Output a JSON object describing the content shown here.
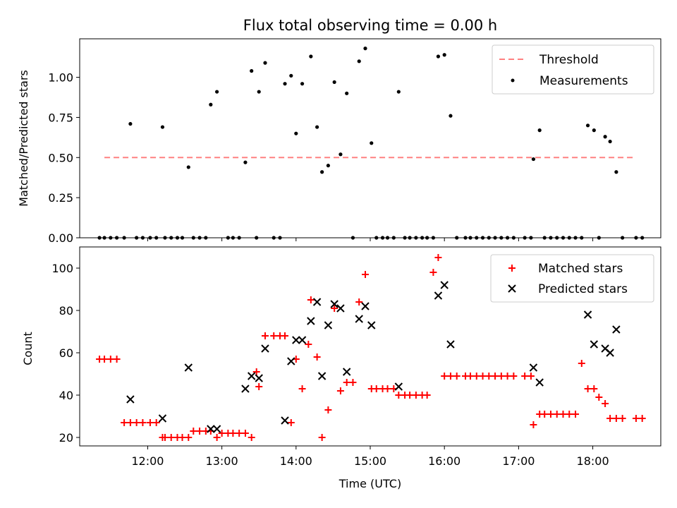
{
  "figure": {
    "title": "Flux total observing time = 0.00 h"
  },
  "chart_data": [
    {
      "type": "scatter",
      "ylabel": "Matched/Predicted stars",
      "ylim": [
        0,
        1.24
      ],
      "yticks": [
        "0.00",
        "0.25",
        "0.50",
        "0.75",
        "1.00"
      ],
      "grid": false,
      "legend_position": "top-right",
      "legend": {
        "threshold_label": "Threshold",
        "measurements_label": "Measurements"
      },
      "threshold": {
        "value": 0.5,
        "x_start": "11:25",
        "x_end": "18:35",
        "color": "#ff8080",
        "style": "dashed"
      },
      "series": [
        {
          "name": "Measurements",
          "color": "#000000",
          "marker": "dot",
          "points": [
            [
              "11:21",
              0
            ],
            [
              "11:25",
              0
            ],
            [
              "11:30",
              0
            ],
            [
              "11:35",
              0
            ],
            [
              "11:41",
              0
            ],
            [
              "11:46",
              0.71
            ],
            [
              "11:51",
              0
            ],
            [
              "11:56",
              0
            ],
            [
              "12:02",
              0
            ],
            [
              "12:07",
              0
            ],
            [
              "12:12",
              0.69
            ],
            [
              "12:14",
              0
            ],
            [
              "12:19",
              0
            ],
            [
              "12:24",
              0
            ],
            [
              "12:28",
              0
            ],
            [
              "12:33",
              0.44
            ],
            [
              "12:37",
              0
            ],
            [
              "12:42",
              0
            ],
            [
              "12:47",
              0
            ],
            [
              "12:51",
              0.83
            ],
            [
              "12:56",
              0.91
            ],
            [
              "13:05",
              0
            ],
            [
              "13:09",
              0
            ],
            [
              "13:14",
              0
            ],
            [
              "13:19",
              0.47
            ],
            [
              "13:24",
              1.04
            ],
            [
              "13:28",
              0
            ],
            [
              "13:30",
              0.91
            ],
            [
              "13:35",
              1.09
            ],
            [
              "13:42",
              0
            ],
            [
              "13:47",
              0
            ],
            [
              "13:51",
              0.96
            ],
            [
              "13:56",
              1.01
            ],
            [
              "14:00",
              0.65
            ],
            [
              "14:05",
              0.96
            ],
            [
              "14:12",
              1.13
            ],
            [
              "14:17",
              0.69
            ],
            [
              "14:21",
              0.41
            ],
            [
              "14:26",
              0.45
            ],
            [
              "14:31",
              0.97
            ],
            [
              "14:36",
              0.52
            ],
            [
              "14:41",
              0.9
            ],
            [
              "14:46",
              0
            ],
            [
              "14:51",
              1.1
            ],
            [
              "14:56",
              1.18
            ],
            [
              "15:01",
              0.59
            ],
            [
              "15:05",
              0
            ],
            [
              "15:10",
              0
            ],
            [
              "15:14",
              0
            ],
            [
              "15:19",
              0
            ],
            [
              "15:23",
              0.91
            ],
            [
              "15:28",
              0
            ],
            [
              "15:32",
              0
            ],
            [
              "15:37",
              0
            ],
            [
              "15:42",
              0
            ],
            [
              "15:46",
              0
            ],
            [
              "15:51",
              0
            ],
            [
              "15:55",
              1.13
            ],
            [
              "16:00",
              1.14
            ],
            [
              "16:05",
              0.76
            ],
            [
              "16:10",
              0
            ],
            [
              "16:17",
              0
            ],
            [
              "16:21",
              0
            ],
            [
              "16:26",
              0
            ],
            [
              "16:31",
              0
            ],
            [
              "16:36",
              0
            ],
            [
              "16:41",
              0
            ],
            [
              "16:46",
              0
            ],
            [
              "16:51",
              0
            ],
            [
              "16:56",
              0
            ],
            [
              "17:05",
              0
            ],
            [
              "17:10",
              0
            ],
            [
              "17:12",
              0.49
            ],
            [
              "17:17",
              0.67
            ],
            [
              "17:21",
              0
            ],
            [
              "17:26",
              0
            ],
            [
              "17:31",
              0
            ],
            [
              "17:36",
              0
            ],
            [
              "17:41",
              0
            ],
            [
              "17:46",
              0
            ],
            [
              "17:51",
              0
            ],
            [
              "17:56",
              0.7
            ],
            [
              "18:01",
              0.67
            ],
            [
              "18:05",
              0
            ],
            [
              "18:10",
              0.63
            ],
            [
              "18:14",
              0.6
            ],
            [
              "18:19",
              0.41
            ],
            [
              "18:24",
              0
            ],
            [
              "18:35",
              0
            ],
            [
              "18:40",
              0
            ]
          ]
        }
      ]
    },
    {
      "type": "scatter",
      "xlabel": "Time (UTC)",
      "ylabel": "Count",
      "ylim": [
        16,
        110
      ],
      "yticks": [
        "20",
        "40",
        "60",
        "80",
        "100"
      ],
      "xticks": [
        "12:00",
        "13:00",
        "14:00",
        "15:00",
        "16:00",
        "17:00",
        "18:00"
      ],
      "grid": false,
      "legend_position": "top-right",
      "series": [
        {
          "name": "Matched stars",
          "color": "#ff0000",
          "marker": "plus",
          "points": [
            [
              "11:21",
              57
            ],
            [
              "11:25",
              57
            ],
            [
              "11:30",
              57
            ],
            [
              "11:35",
              57
            ],
            [
              "11:41",
              27
            ],
            [
              "11:46",
              27
            ],
            [
              "11:51",
              27
            ],
            [
              "11:56",
              27
            ],
            [
              "12:02",
              27
            ],
            [
              "12:07",
              27
            ],
            [
              "12:12",
              20
            ],
            [
              "12:14",
              20
            ],
            [
              "12:19",
              20
            ],
            [
              "12:24",
              20
            ],
            [
              "12:28",
              20
            ],
            [
              "12:33",
              20
            ],
            [
              "12:37",
              23
            ],
            [
              "12:42",
              23
            ],
            [
              "12:47",
              23
            ],
            [
              "12:51",
              23
            ],
            [
              "12:56",
              20
            ],
            [
              "13:00",
              22
            ],
            [
              "13:05",
              22
            ],
            [
              "13:09",
              22
            ],
            [
              "13:14",
              22
            ],
            [
              "13:19",
              22
            ],
            [
              "13:24",
              20
            ],
            [
              "13:28",
              51
            ],
            [
              "13:30",
              44
            ],
            [
              "13:35",
              68
            ],
            [
              "13:42",
              68
            ],
            [
              "13:47",
              68
            ],
            [
              "13:51",
              68
            ],
            [
              "13:56",
              27
            ],
            [
              "14:00",
              57
            ],
            [
              "14:05",
              43
            ],
            [
              "14:10",
              64
            ],
            [
              "14:12",
              85
            ],
            [
              "14:17",
              58
            ],
            [
              "14:21",
              20
            ],
            [
              "14:26",
              33
            ],
            [
              "14:31",
              81
            ],
            [
              "14:36",
              42
            ],
            [
              "14:41",
              46
            ],
            [
              "14:46",
              46
            ],
            [
              "14:51",
              84
            ],
            [
              "14:56",
              97
            ],
            [
              "15:01",
              43
            ],
            [
              "15:05",
              43
            ],
            [
              "15:10",
              43
            ],
            [
              "15:14",
              43
            ],
            [
              "15:19",
              43
            ],
            [
              "15:23",
              40
            ],
            [
              "15:28",
              40
            ],
            [
              "15:32",
              40
            ],
            [
              "15:37",
              40
            ],
            [
              "15:42",
              40
            ],
            [
              "15:46",
              40
            ],
            [
              "15:51",
              98
            ],
            [
              "15:55",
              105
            ],
            [
              "16:00",
              49
            ],
            [
              "16:05",
              49
            ],
            [
              "16:10",
              49
            ],
            [
              "16:17",
              49
            ],
            [
              "16:21",
              49
            ],
            [
              "16:26",
              49
            ],
            [
              "16:31",
              49
            ],
            [
              "16:36",
              49
            ],
            [
              "16:41",
              49
            ],
            [
              "16:46",
              49
            ],
            [
              "16:51",
              49
            ],
            [
              "16:56",
              49
            ],
            [
              "17:05",
              49
            ],
            [
              "17:10",
              49
            ],
            [
              "17:12",
              26
            ],
            [
              "17:17",
              31
            ],
            [
              "17:21",
              31
            ],
            [
              "17:26",
              31
            ],
            [
              "17:31",
              31
            ],
            [
              "17:36",
              31
            ],
            [
              "17:41",
              31
            ],
            [
              "17:46",
              31
            ],
            [
              "17:51",
              55
            ],
            [
              "17:56",
              43
            ],
            [
              "18:01",
              43
            ],
            [
              "18:05",
              39
            ],
            [
              "18:10",
              36
            ],
            [
              "18:14",
              29
            ],
            [
              "18:19",
              29
            ],
            [
              "18:24",
              29
            ],
            [
              "18:35",
              29
            ],
            [
              "18:40",
              29
            ]
          ]
        },
        {
          "name": "Predicted stars",
          "color": "#000000",
          "marker": "x",
          "points": [
            [
              "11:46",
              38
            ],
            [
              "12:12",
              29
            ],
            [
              "12:33",
              53
            ],
            [
              "12:51",
              24
            ],
            [
              "12:56",
              24
            ],
            [
              "13:19",
              43
            ],
            [
              "13:24",
              49
            ],
            [
              "13:30",
              48
            ],
            [
              "13:35",
              62
            ],
            [
              "13:51",
              28
            ],
            [
              "13:56",
              56
            ],
            [
              "14:00",
              66
            ],
            [
              "14:05",
              66
            ],
            [
              "14:12",
              75
            ],
            [
              "14:17",
              84
            ],
            [
              "14:21",
              49
            ],
            [
              "14:26",
              73
            ],
            [
              "14:31",
              83
            ],
            [
              "14:36",
              81
            ],
            [
              "14:41",
              51
            ],
            [
              "14:51",
              76
            ],
            [
              "14:56",
              82
            ],
            [
              "15:01",
              73
            ],
            [
              "15:23",
              44
            ],
            [
              "15:55",
              87
            ],
            [
              "16:00",
              92
            ],
            [
              "16:05",
              64
            ],
            [
              "17:12",
              53
            ],
            [
              "17:17",
              46
            ],
            [
              "17:56",
              78
            ],
            [
              "18:01",
              64
            ],
            [
              "18:10",
              62
            ],
            [
              "18:14",
              60
            ],
            [
              "18:19",
              71
            ]
          ]
        }
      ]
    }
  ]
}
